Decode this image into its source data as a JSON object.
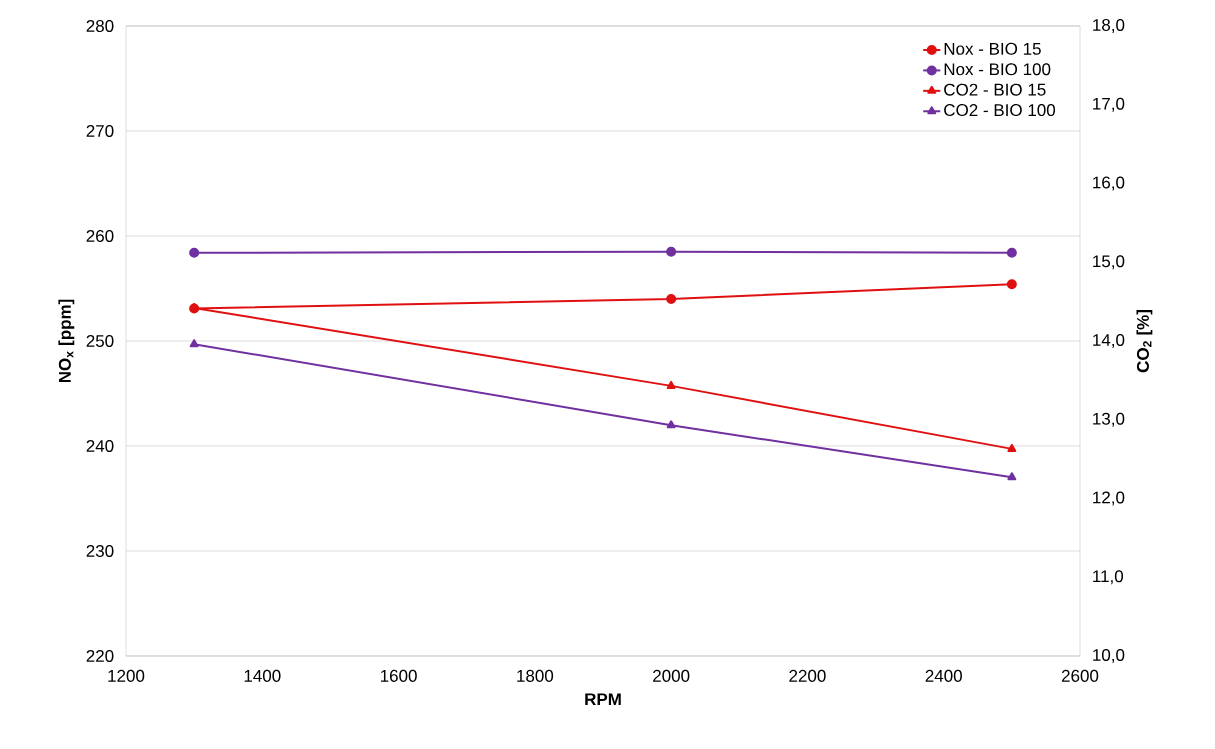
{
  "chart_data": {
    "type": "line",
    "xlabel": "RPM",
    "ylabel": "NO$_{x}$ [ppm]",
    "y2label": "CO$_{2}$ [%]",
    "x": [
      1300,
      2000,
      2500
    ],
    "series": [
      {
        "name": "Nox - BIO 15",
        "color": "#e01010",
        "marker": "circle",
        "values": [
          253.1,
          254.0,
          255.4
        ]
      },
      {
        "name": "Nox - BIO 100",
        "color": "#7030a0",
        "marker": "circle",
        "values": [
          258.4,
          258.5,
          258.4
        ]
      },
      {
        "name": "CO2 - BIO 15",
        "color": "#e01010",
        "marker": "triangle",
        "axis": "y2",
        "values": [
          14.42,
          13.43,
          12.63
        ]
      },
      {
        "name": "CO2 - BIO 100",
        "color": "#7030a0",
        "marker": "triangle",
        "axis": "y2",
        "values": [
          13.96,
          12.93,
          12.27
        ]
      }
    ],
    "xlim": [
      1200,
      2600
    ],
    "xticks": [
      1200,
      1400,
      1600,
      1800,
      2000,
      2200,
      2400,
      2600
    ],
    "ylim": [
      220,
      280
    ],
    "yticks": [
      220,
      230,
      240,
      250,
      260,
      270,
      280
    ],
    "y2lim": [
      10,
      18
    ],
    "y2ticks": [
      {
        "value": 10,
        "label": "10,0"
      },
      {
        "value": 11,
        "label": "11,0"
      },
      {
        "value": 12,
        "label": "12,0"
      },
      {
        "value": 13,
        "label": "13,0"
      },
      {
        "value": 14,
        "label": "14,0"
      },
      {
        "value": 15,
        "label": "15,0"
      },
      {
        "value": 16,
        "label": "16,0"
      },
      {
        "value": 17,
        "label": "17,0"
      },
      {
        "value": 18,
        "label": "18,0"
      }
    ],
    "grid": "y",
    "legend": "top right"
  }
}
